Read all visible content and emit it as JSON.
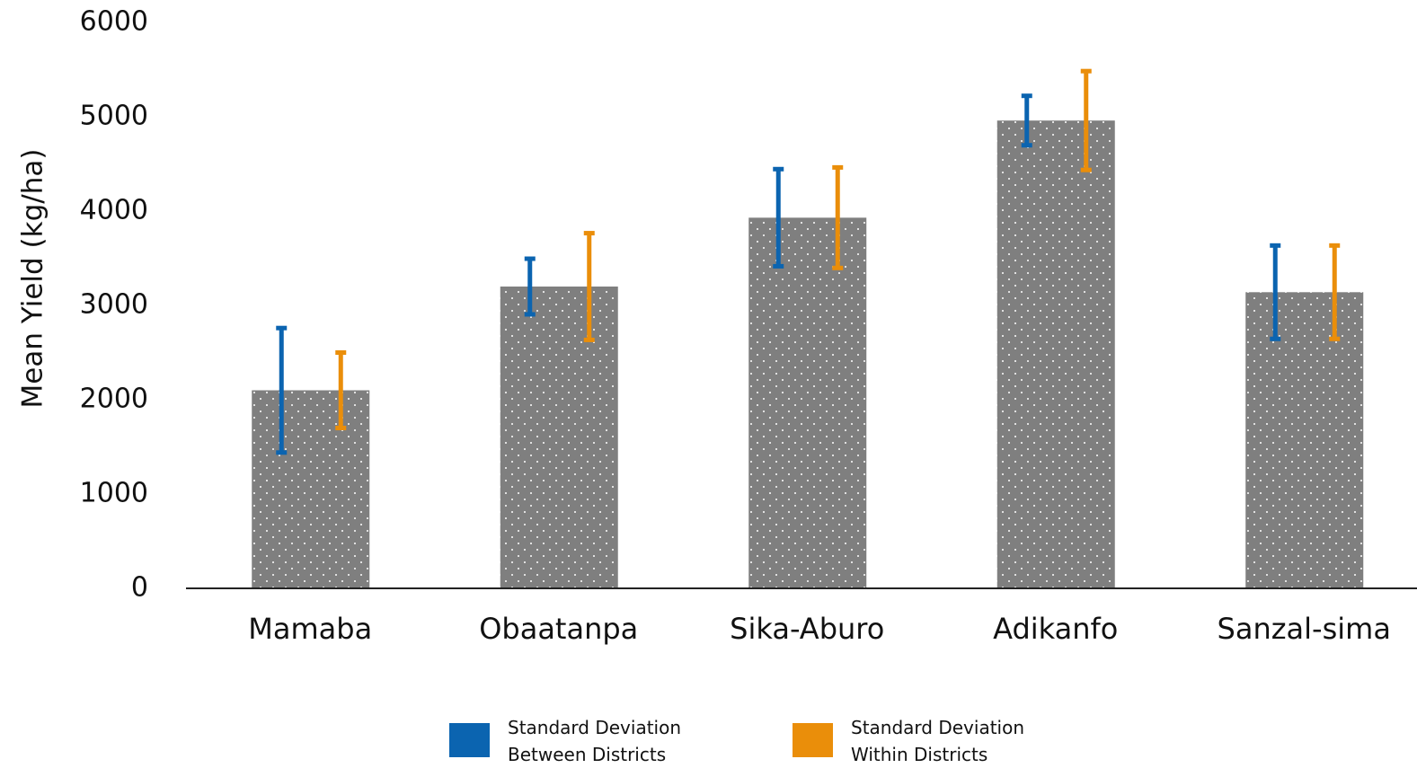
{
  "chart_data": {
    "type": "bar",
    "y_label": "Mean Yield (kg/ha)",
    "categories": [
      "Mamaba",
      "Obaatanpa",
      "Sika-Aburo",
      "Adikanfo",
      "Sanzal-sima"
    ],
    "values": [
      2100,
      3200,
      3930,
      4960,
      3140
    ],
    "color": "#7f7f7f",
    "error_series": [
      {
        "name": "Standard Deviation Between Districts",
        "color": "#0b64b0",
        "errors": [
          660,
          295,
          515,
          262,
          495
        ]
      },
      {
        "name": "Standard Deviation Within Districts",
        "color": "#ea8e0a",
        "errors": [
          400,
          566,
          533,
          524,
          495
        ]
      }
    ],
    "ylim": [
      0,
      6000
    ],
    "yticks": [
      0,
      1000,
      2000,
      3000,
      4000,
      5000,
      6000
    ],
    "grid": false
  }
}
